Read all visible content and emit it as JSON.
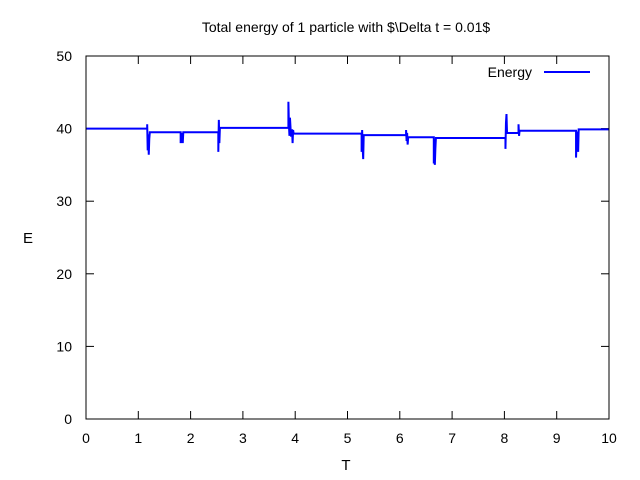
{
  "chart_data": {
    "type": "line",
    "title": "Total energy of 1 particle with $\\Delta t = 0.01$",
    "xlabel": "T",
    "ylabel": "E",
    "xlim": [
      0,
      10
    ],
    "ylim": [
      0,
      50
    ],
    "xticks": [
      "0",
      "1",
      "2",
      "3",
      "4",
      "5",
      "6",
      "7",
      "8",
      "9",
      "10"
    ],
    "yticks": [
      "0",
      "10",
      "20",
      "30",
      "40",
      "50"
    ],
    "grid": false,
    "legend": {
      "position": "top-right"
    },
    "series": [
      {
        "name": "Energy",
        "color": "#0000ff",
        "points": [
          [
            0,
            40.0
          ],
          [
            1.17,
            40.0
          ],
          [
            1.17,
            40.6
          ],
          [
            1.18,
            37.0
          ],
          [
            1.19,
            39.2
          ],
          [
            1.2,
            36.4
          ],
          [
            1.21,
            38.6
          ],
          [
            1.22,
            39.5
          ],
          [
            1.23,
            39.5
          ],
          [
            1.81,
            39.5
          ],
          [
            1.81,
            38.0
          ],
          [
            1.82,
            39.4
          ],
          [
            1.83,
            38.0
          ],
          [
            1.84,
            39.4
          ],
          [
            1.85,
            38.0
          ],
          [
            1.86,
            39.5
          ],
          [
            2.53,
            39.5
          ],
          [
            2.53,
            36.8
          ],
          [
            2.54,
            41.2
          ],
          [
            2.55,
            38.0
          ],
          [
            2.56,
            40.1
          ],
          [
            3.87,
            40.1
          ],
          [
            3.87,
            43.7
          ],
          [
            3.88,
            40.5
          ],
          [
            3.89,
            39.0
          ],
          [
            3.9,
            41.5
          ],
          [
            3.92,
            38.9
          ],
          [
            3.94,
            39.9
          ],
          [
            3.95,
            38.0
          ],
          [
            3.96,
            39.8
          ],
          [
            3.97,
            39.3
          ],
          [
            5.27,
            39.3
          ],
          [
            5.27,
            36.8
          ],
          [
            5.28,
            39.8
          ],
          [
            5.29,
            37.4
          ],
          [
            5.3,
            35.8
          ],
          [
            5.31,
            39.1
          ],
          [
            6.12,
            39.1
          ],
          [
            6.12,
            39.8
          ],
          [
            6.13,
            38.3
          ],
          [
            6.14,
            39.4
          ],
          [
            6.15,
            37.8
          ],
          [
            6.16,
            38.8
          ],
          [
            6.65,
            38.8
          ],
          [
            6.65,
            35.2
          ],
          [
            6.66,
            37.6
          ],
          [
            6.67,
            35.0
          ],
          [
            6.68,
            37.2
          ],
          [
            6.69,
            38.7
          ],
          [
            8.02,
            38.7
          ],
          [
            8.02,
            37.2
          ],
          [
            8.03,
            40.8
          ],
          [
            8.04,
            42.0
          ],
          [
            8.05,
            39.4
          ],
          [
            8.27,
            39.4
          ],
          [
            8.27,
            40.6
          ],
          [
            8.28,
            39.0
          ],
          [
            8.29,
            39.7
          ],
          [
            9.37,
            39.7
          ],
          [
            9.37,
            36.0
          ],
          [
            9.38,
            38.6
          ],
          [
            9.39,
            37.0
          ],
          [
            9.4,
            39.6
          ],
          [
            9.41,
            36.8
          ],
          [
            9.42,
            39.9
          ],
          [
            10.0,
            39.9
          ]
        ]
      }
    ]
  }
}
